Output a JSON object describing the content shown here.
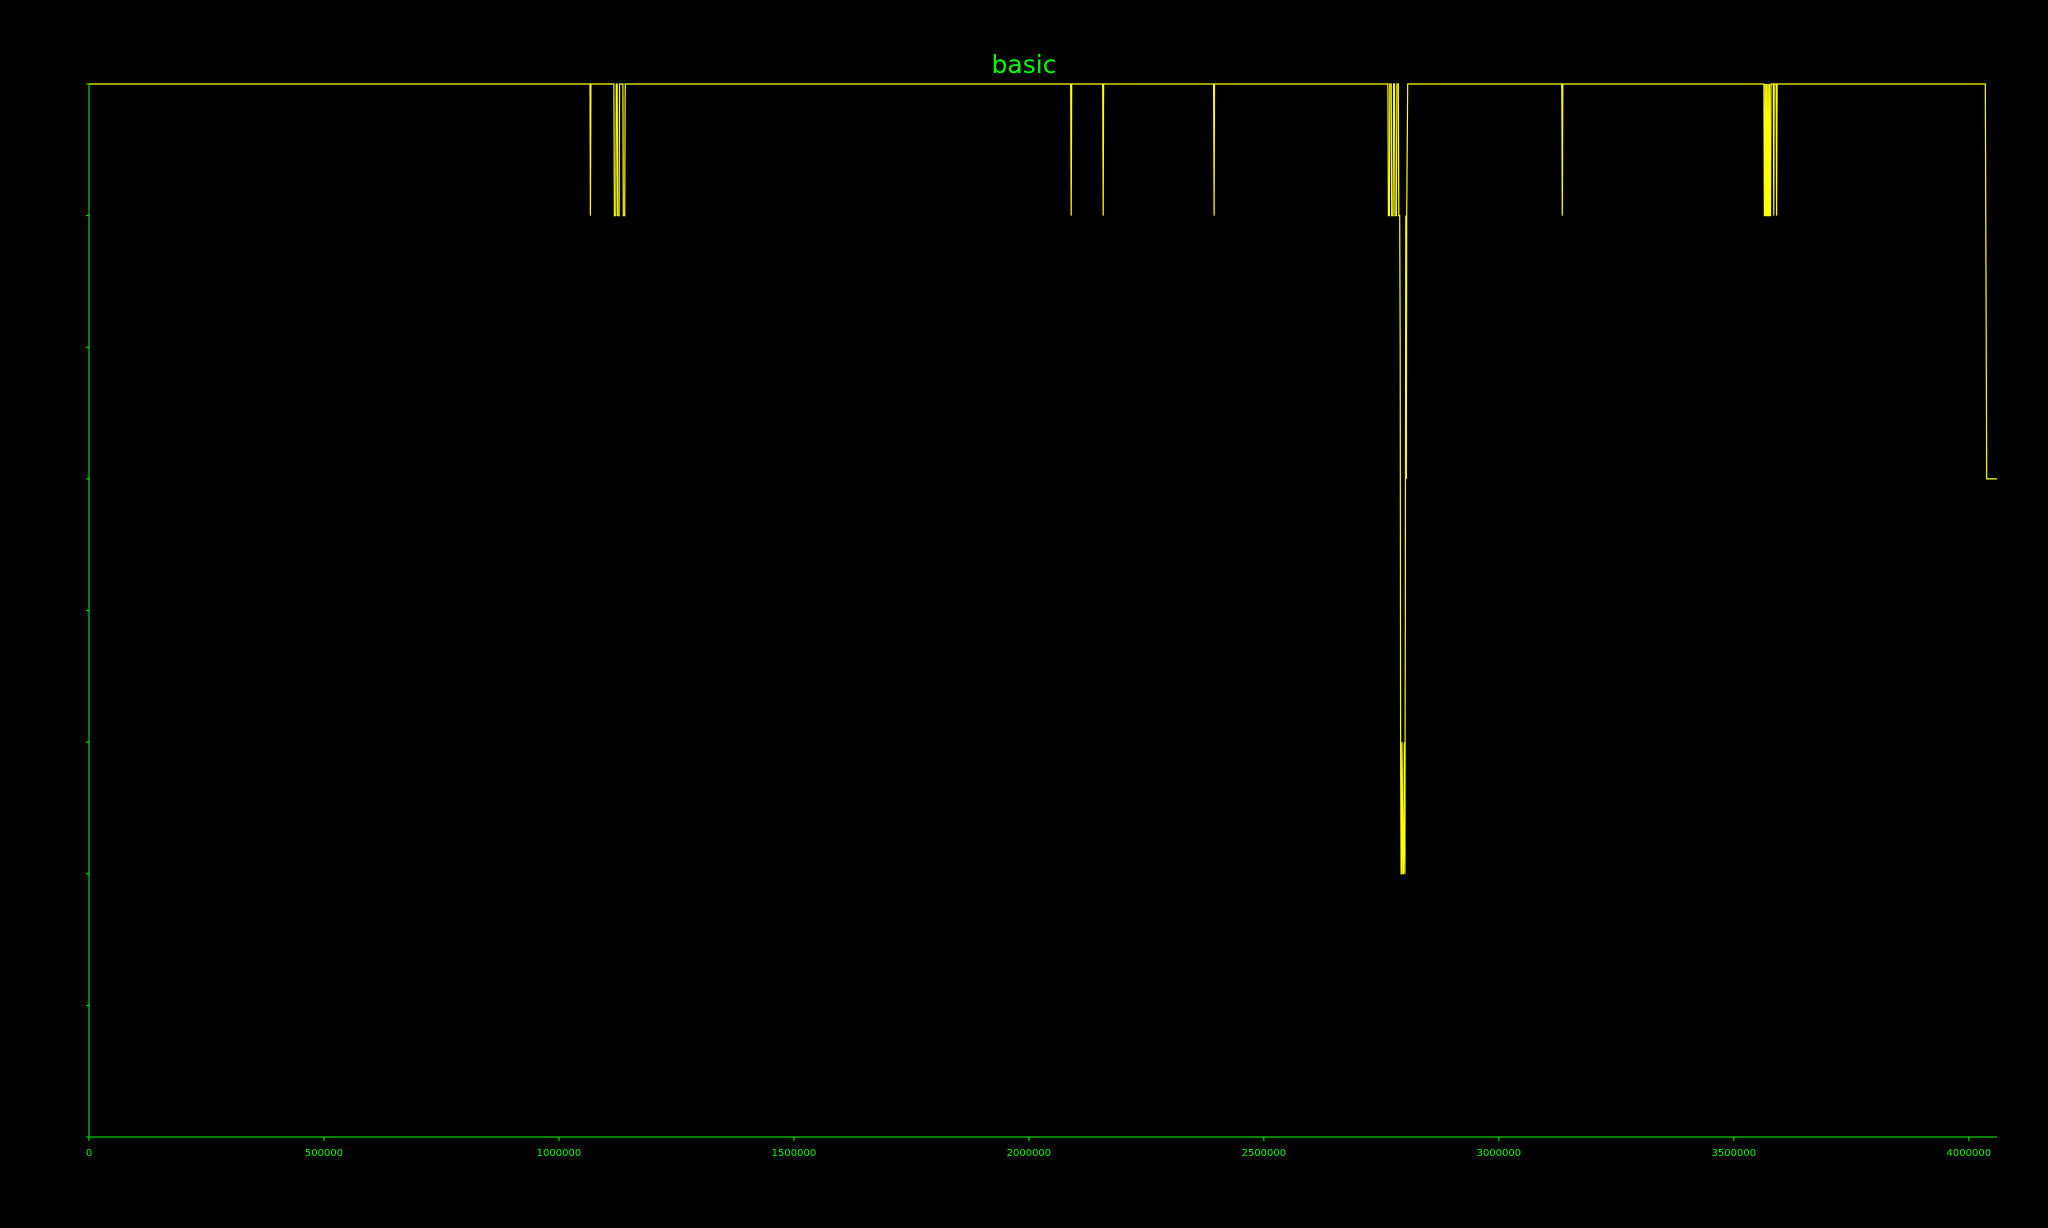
{
  "chart_data": {
    "type": "line",
    "title": "basic",
    "xlabel": "",
    "ylabel": "",
    "xlim": [
      0,
      4060000
    ],
    "ylim": [
      0,
      8
    ],
    "x_ticks": [
      0,
      500000,
      1000000,
      1500000,
      2000000,
      2500000,
      3000000,
      3500000,
      4000000
    ],
    "x_tick_labels": [
      "0",
      "500000",
      "1000000",
      "1500000",
      "2000000",
      "2500000",
      "3000000",
      "3500000",
      "4000000"
    ],
    "y_ticks": [
      0,
      1,
      2,
      3,
      4,
      5,
      6,
      7,
      8
    ],
    "grid": false,
    "colors": {
      "axis": "#00ff00",
      "title": "#00ff00",
      "line": "#ffff00",
      "background": "#000000"
    },
    "series": [
      {
        "x": [
          0,
          1066000,
          1067000,
          1068000,
          1117000,
          1118000,
          1121000,
          1122000,
          1124000,
          1125000,
          1128000,
          1129000,
          1136000,
          1137000,
          1140000,
          1141000,
          2089000,
          2090000,
          2091000,
          2157000,
          2158000,
          2159000,
          2393000,
          2394000,
          2395000,
          2764000,
          2765000,
          2767000,
          2768000,
          2771000,
          2772000,
          2775000,
          2776000,
          2778000,
          2779000,
          2782000,
          2783000,
          2786000,
          2787000,
          2789000,
          2790000,
          2791000,
          2792000,
          2793000,
          2794000,
          2796000,
          2797000,
          2799000,
          2800000,
          2801000,
          2802000,
          2803000,
          2804000,
          2806000,
          3134000,
          3135000,
          3136000,
          3564000,
          3565000,
          3566000,
          3567000,
          3568000,
          3569000,
          3570000,
          3571000,
          3572000,
          3573000,
          3574000,
          3575000,
          3576000,
          3577000,
          3578000,
          3579000,
          3580000,
          3584000,
          3585000,
          3586000,
          3590000,
          3591000,
          3592000,
          4035000,
          4038000,
          4060000
        ],
        "y": [
          8,
          8,
          7,
          8,
          8,
          7,
          7,
          8,
          8,
          7,
          7,
          8,
          8,
          7,
          7,
          8,
          8,
          7,
          8,
          8,
          7,
          8,
          8,
          7,
          8,
          8,
          7,
          7,
          8,
          8,
          7,
          7,
          8,
          8,
          7,
          7,
          8,
          8,
          7,
          7,
          6,
          3,
          2,
          2,
          3,
          2,
          2,
          3,
          2,
          4,
          7,
          5,
          7,
          8,
          8,
          7,
          8,
          8,
          7,
          7,
          8,
          7,
          7,
          8,
          7,
          7,
          8,
          7,
          7,
          8,
          7,
          7,
          8,
          8,
          8,
          7,
          8,
          8,
          7,
          8,
          8,
          5,
          5
        ]
      }
    ]
  }
}
